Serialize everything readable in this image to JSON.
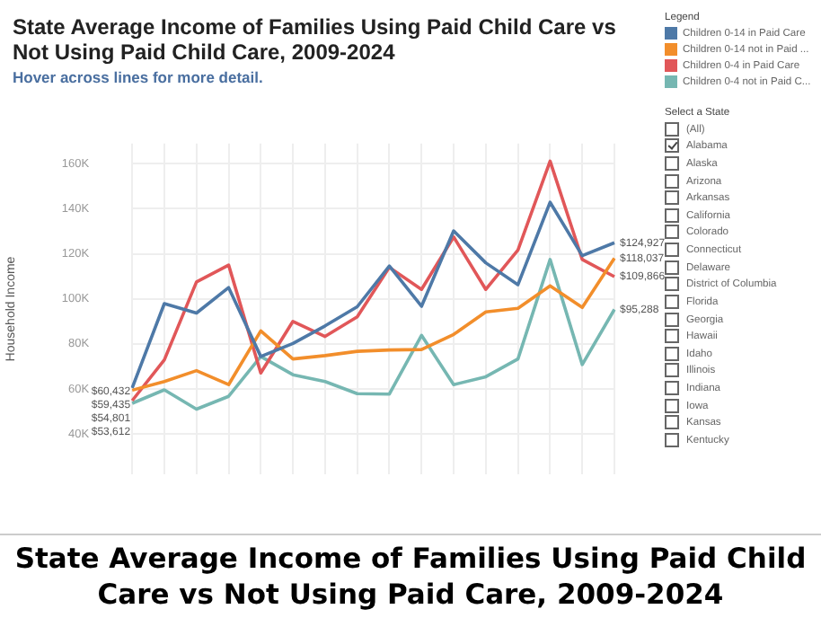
{
  "chart_data": {
    "type": "line",
    "title": "State Average Income of Families Using Paid Child Care vs Not Using Paid Child Care, 2009-2024",
    "subtitle": "Hover across lines for more detail.",
    "ylabel": "Household Income",
    "legend_title": "Legend",
    "legend": "right",
    "categories": [
      null,
      null,
      null,
      null,
      null,
      null,
      null,
      null,
      null,
      null,
      null,
      null,
      null,
      null,
      null,
      null
    ],
    "series": [
      {
        "name": "Children 0-14 in Paid Care",
        "color": "#4e79a7",
        "values": [
          60432,
          97900,
          93700,
          105000,
          74400,
          80200,
          88000,
          96500,
          114600,
          96700,
          130200,
          116000,
          106300,
          142900,
          119200,
          124927
        ],
        "value_labels": [
          "$60,432",
          null,
          null,
          null,
          null,
          null,
          null,
          null,
          null,
          null,
          null,
          null,
          null,
          null,
          null,
          "$124,927"
        ]
      },
      {
        "name": "Children 0-14 not in Paid ...",
        "color": "#f28e2b",
        "values": [
          59435,
          63300,
          68100,
          61900,
          85800,
          73300,
          74800,
          76700,
          77300,
          77500,
          84200,
          94200,
          95800,
          105800,
          96200,
          118037
        ],
        "value_labels": [
          "$59,435",
          null,
          null,
          null,
          null,
          null,
          null,
          null,
          null,
          null,
          null,
          null,
          null,
          null,
          null,
          "$118,037"
        ]
      },
      {
        "name": "Children 0-4 in Paid Care",
        "color": "#e15759",
        "values": [
          54801,
          72900,
          107500,
          115000,
          67100,
          90000,
          83300,
          92000,
          114000,
          104200,
          127500,
          104200,
          121700,
          161200,
          117500,
          109866
        ],
        "value_labels": [
          "$54,801",
          null,
          null,
          null,
          null,
          null,
          null,
          null,
          null,
          null,
          null,
          null,
          null,
          null,
          null,
          "$109,866"
        ]
      },
      {
        "name": "Children 0-4 not in Paid C...",
        "color": "#76b7b2",
        "values": [
          53612,
          59600,
          51000,
          56700,
          74400,
          66300,
          63300,
          57900,
          57700,
          83800,
          61900,
          65400,
          73300,
          117500,
          70800,
          95288
        ],
        "value_labels": [
          "$53,612",
          null,
          null,
          null,
          null,
          null,
          null,
          null,
          null,
          null,
          null,
          null,
          null,
          null,
          null,
          "$95,288"
        ]
      }
    ],
    "ylim": [
      22000,
      169000
    ],
    "yticks": [
      {
        "value": 40000,
        "label": "40K"
      },
      {
        "value": 60000,
        "label": "60K"
      },
      {
        "value": 80000,
        "label": "80K"
      },
      {
        "value": 100000,
        "label": "100K"
      },
      {
        "value": 120000,
        "label": "120K"
      },
      {
        "value": 140000,
        "label": "140K"
      },
      {
        "value": 160000,
        "label": "160K"
      }
    ],
    "grid": true,
    "marker": "none",
    "line_style": "solid",
    "annotations": [
      "Select a State",
      "(All)",
      "Alabama",
      "Alaska",
      "Arizona",
      "Arkansas",
      "California",
      "Colorado",
      "Connecticut",
      "Delaware",
      "District of Columbia",
      "Florida",
      "Georgia",
      "Hawaii",
      "Idaho",
      "Illinois",
      "Indiana",
      "Iowa",
      "Kansas",
      "Kentucky",
      "State Average Income of Families Using Paid Child Care vs Not Using Paid Care, 2009-2024"
    ]
  }
}
